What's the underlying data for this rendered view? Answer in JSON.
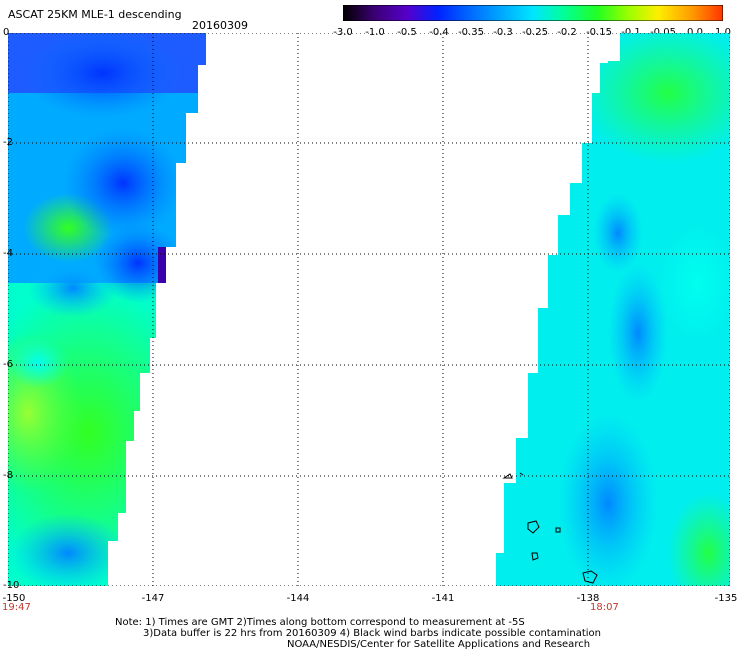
{
  "header": {
    "title": "ASCAT 25KM MLE-1 descending",
    "date": "20160309"
  },
  "colorbar": {
    "colors": [
      "#000000",
      "#3a0070",
      "#5500cc",
      "#0022ff",
      "#0066ff",
      "#00aaff",
      "#00e5ff",
      "#00ff99",
      "#22ff22",
      "#99ff00",
      "#ffee00",
      "#ff9900",
      "#ff3300"
    ],
    "labels": [
      "-3.0",
      "-1.0",
      "-0.5",
      "-0.4",
      "-0.35",
      "-0.3",
      "-0.25",
      "-0.2",
      "-0.15",
      "-0.1",
      "-0.05",
      "0.0",
      "1.0"
    ]
  },
  "axes": {
    "y_ticks": [
      "0",
      "-2",
      "-4",
      "-6",
      "-8",
      "-10"
    ],
    "x_ticks": [
      "-150",
      "-147",
      "-144",
      "-141",
      "-138",
      "-135"
    ],
    "time_left": "19:47",
    "time_right": "18:07"
  },
  "notes": {
    "line1": "Note: 1) Times are GMT 2)Times along bottom correspond to measurement at -5S",
    "line2": "3)Data buffer is 22 hrs from 20160309 4) Black wind barbs indicate possible contamination",
    "line3": "NOAA/NESDIS/Center for Satellite Applications and Research"
  },
  "legend_colors": {
    "low": "#0000ff",
    "mid": "#00ffff",
    "high": "#00ff00"
  }
}
